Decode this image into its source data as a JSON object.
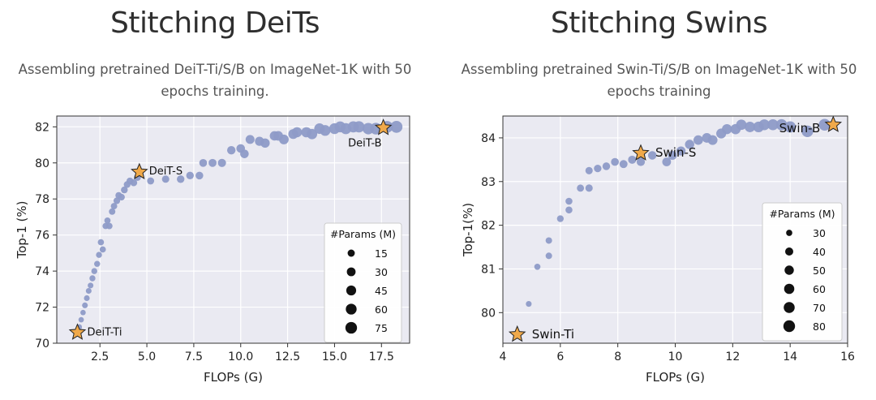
{
  "panels": [
    {
      "title": "Stitching DeiTs",
      "subtitle_line1": "Assembling pretrained DeiT-Ti/S/B on ImageNet-1K with 50",
      "subtitle_line2": "epochs training."
    },
    {
      "title": "Stitching Swins",
      "subtitle_line1": "Assembling pretrained Swin-Ti/S/B on ImageNet-1K with 50",
      "subtitle_line2": "epochs training"
    }
  ],
  "colors": {
    "dot": "#8e9bc7",
    "star_fill": "#f0a94a",
    "star_stroke": "#222222",
    "plot_bg": "#eaeaf2",
    "grid": "#ffffff"
  },
  "chart_data": [
    {
      "type": "scatter",
      "title": "",
      "xlabel": "FLOPs (G)",
      "ylabel": "Top-1 (%)",
      "xlim": [
        0.2,
        19.0
      ],
      "ylim": [
        70.0,
        82.6
      ],
      "xticks": [
        2.5,
        5.0,
        7.5,
        10.0,
        12.5,
        15.0,
        17.5
      ],
      "xtick_labels": [
        "2.5",
        "5.0",
        "7.5",
        "10.0",
        "12.5",
        "15.0",
        "17.5"
      ],
      "yticks": [
        70,
        72,
        74,
        76,
        78,
        80,
        82
      ],
      "grid": true,
      "legend": {
        "title": "#Params (M)",
        "placement": "lower-right",
        "sizes": [
          15,
          30,
          45,
          60,
          75
        ],
        "labels": [
          "15",
          "30",
          "45",
          "60",
          "75"
        ]
      },
      "anchors": [
        {
          "label": "DeiT-Ti",
          "x": 1.3,
          "y": 70.6,
          "params": 5
        },
        {
          "label": "DeiT-S",
          "x": 4.6,
          "y": 79.5,
          "params": 22
        },
        {
          "label": "DeiT-B",
          "x": 17.6,
          "y": 81.95,
          "params": 86
        }
      ],
      "points": [
        [
          1.4,
          70.9,
          6
        ],
        [
          1.5,
          71.3,
          6
        ],
        [
          1.6,
          71.7,
          6
        ],
        [
          1.7,
          72.1,
          7
        ],
        [
          1.8,
          72.5,
          7
        ],
        [
          1.9,
          72.9,
          7
        ],
        [
          2.0,
          73.2,
          7
        ],
        [
          2.1,
          73.6,
          8
        ],
        [
          2.2,
          74.0,
          8
        ],
        [
          2.35,
          74.4,
          8
        ],
        [
          2.45,
          74.9,
          8
        ],
        [
          2.55,
          75.6,
          9
        ],
        [
          2.65,
          75.2,
          9
        ],
        [
          2.8,
          76.5,
          9
        ],
        [
          2.9,
          76.8,
          9
        ],
        [
          3.0,
          76.5,
          10
        ],
        [
          3.15,
          77.3,
          10
        ],
        [
          3.25,
          77.6,
          10
        ],
        [
          3.4,
          77.9,
          11
        ],
        [
          3.5,
          78.2,
          11
        ],
        [
          3.65,
          78.1,
          11
        ],
        [
          3.8,
          78.5,
          12
        ],
        [
          3.95,
          78.8,
          12
        ],
        [
          4.1,
          79.0,
          12
        ],
        [
          4.3,
          78.9,
          13
        ],
        [
          4.5,
          79.2,
          13
        ],
        [
          5.2,
          79.0,
          14
        ],
        [
          6.0,
          79.1,
          16
        ],
        [
          6.8,
          79.1,
          18
        ],
        [
          7.3,
          79.3,
          18
        ],
        [
          7.8,
          79.3,
          19
        ],
        [
          8.0,
          80.0,
          20
        ],
        [
          8.5,
          80.0,
          22
        ],
        [
          9.0,
          80.0,
          24
        ],
        [
          9.5,
          80.7,
          26
        ],
        [
          10.0,
          80.8,
          28
        ],
        [
          10.2,
          80.5,
          28
        ],
        [
          10.5,
          81.3,
          32
        ],
        [
          11.0,
          81.2,
          34
        ],
        [
          11.3,
          81.1,
          36
        ],
        [
          11.8,
          81.5,
          38
        ],
        [
          12.0,
          81.5,
          40
        ],
        [
          12.3,
          81.3,
          42
        ],
        [
          12.8,
          81.6,
          44
        ],
        [
          13.0,
          81.7,
          48
        ],
        [
          13.5,
          81.7,
          50
        ],
        [
          13.8,
          81.6,
          52
        ],
        [
          14.2,
          81.9,
          56
        ],
        [
          14.5,
          81.8,
          58
        ],
        [
          15.0,
          81.9,
          60
        ],
        [
          15.3,
          82.0,
          62
        ],
        [
          15.6,
          81.9,
          64
        ],
        [
          16.0,
          82.0,
          66
        ],
        [
          16.3,
          82.0,
          68
        ],
        [
          16.8,
          81.9,
          72
        ],
        [
          17.2,
          81.9,
          74
        ],
        [
          17.8,
          82.0,
          78
        ],
        [
          18.3,
          82.0,
          82
        ]
      ]
    },
    {
      "type": "scatter",
      "title": "",
      "xlabel": "FLOPs (G)",
      "ylabel": "Top-1(%)",
      "xlim": [
        4.0,
        16.0
      ],
      "ylim": [
        79.3,
        84.5
      ],
      "xticks": [
        4,
        6,
        8,
        10,
        12,
        14,
        16
      ],
      "xtick_labels": [
        "4",
        "6",
        "8",
        "10",
        "12",
        "14",
        "16"
      ],
      "yticks": [
        80,
        81,
        82,
        83,
        84
      ],
      "grid": true,
      "legend": {
        "title": "#Params (M)",
        "placement": "lower-right",
        "sizes": [
          30,
          40,
          50,
          60,
          70,
          80
        ],
        "labels": [
          "30",
          "40",
          "50",
          "60",
          "70",
          "80"
        ]
      },
      "anchors": [
        {
          "label": "Swin-Ti",
          "x": 4.5,
          "y": 79.5,
          "params": 28
        },
        {
          "label": "Swin-S",
          "x": 8.8,
          "y": 83.65,
          "params": 50
        },
        {
          "label": "Swin-B",
          "x": 15.5,
          "y": 84.3,
          "params": 88
        }
      ],
      "points": [
        [
          4.9,
          80.2,
          29
        ],
        [
          5.2,
          81.05,
          30
        ],
        [
          5.6,
          81.3,
          31
        ],
        [
          5.6,
          81.65,
          31
        ],
        [
          6.0,
          82.15,
          32
        ],
        [
          6.3,
          82.35,
          33
        ],
        [
          6.3,
          82.55,
          33
        ],
        [
          6.7,
          82.85,
          34
        ],
        [
          7.0,
          82.85,
          35
        ],
        [
          7.0,
          83.25,
          35
        ],
        [
          7.3,
          83.3,
          36
        ],
        [
          7.6,
          83.35,
          37
        ],
        [
          7.9,
          83.45,
          38
        ],
        [
          8.2,
          83.4,
          39
        ],
        [
          8.5,
          83.5,
          40
        ],
        [
          8.8,
          83.45,
          41
        ],
        [
          9.2,
          83.6,
          43
        ],
        [
          9.7,
          83.45,
          45
        ],
        [
          9.9,
          83.6,
          46
        ],
        [
          10.2,
          83.7,
          48
        ],
        [
          10.5,
          83.85,
          50
        ],
        [
          10.8,
          83.95,
          52
        ],
        [
          11.1,
          84.0,
          54
        ],
        [
          11.3,
          83.95,
          55
        ],
        [
          11.6,
          84.1,
          57
        ],
        [
          11.8,
          84.2,
          58
        ],
        [
          12.1,
          84.2,
          60
        ],
        [
          12.3,
          84.3,
          62
        ],
        [
          12.6,
          84.25,
          64
        ],
        [
          12.9,
          84.25,
          66
        ],
        [
          13.1,
          84.3,
          68
        ],
        [
          13.4,
          84.3,
          70
        ],
        [
          13.7,
          84.3,
          72
        ],
        [
          14.0,
          84.25,
          74
        ],
        [
          14.6,
          84.15,
          78
        ],
        [
          15.2,
          84.3,
          82
        ]
      ]
    }
  ]
}
